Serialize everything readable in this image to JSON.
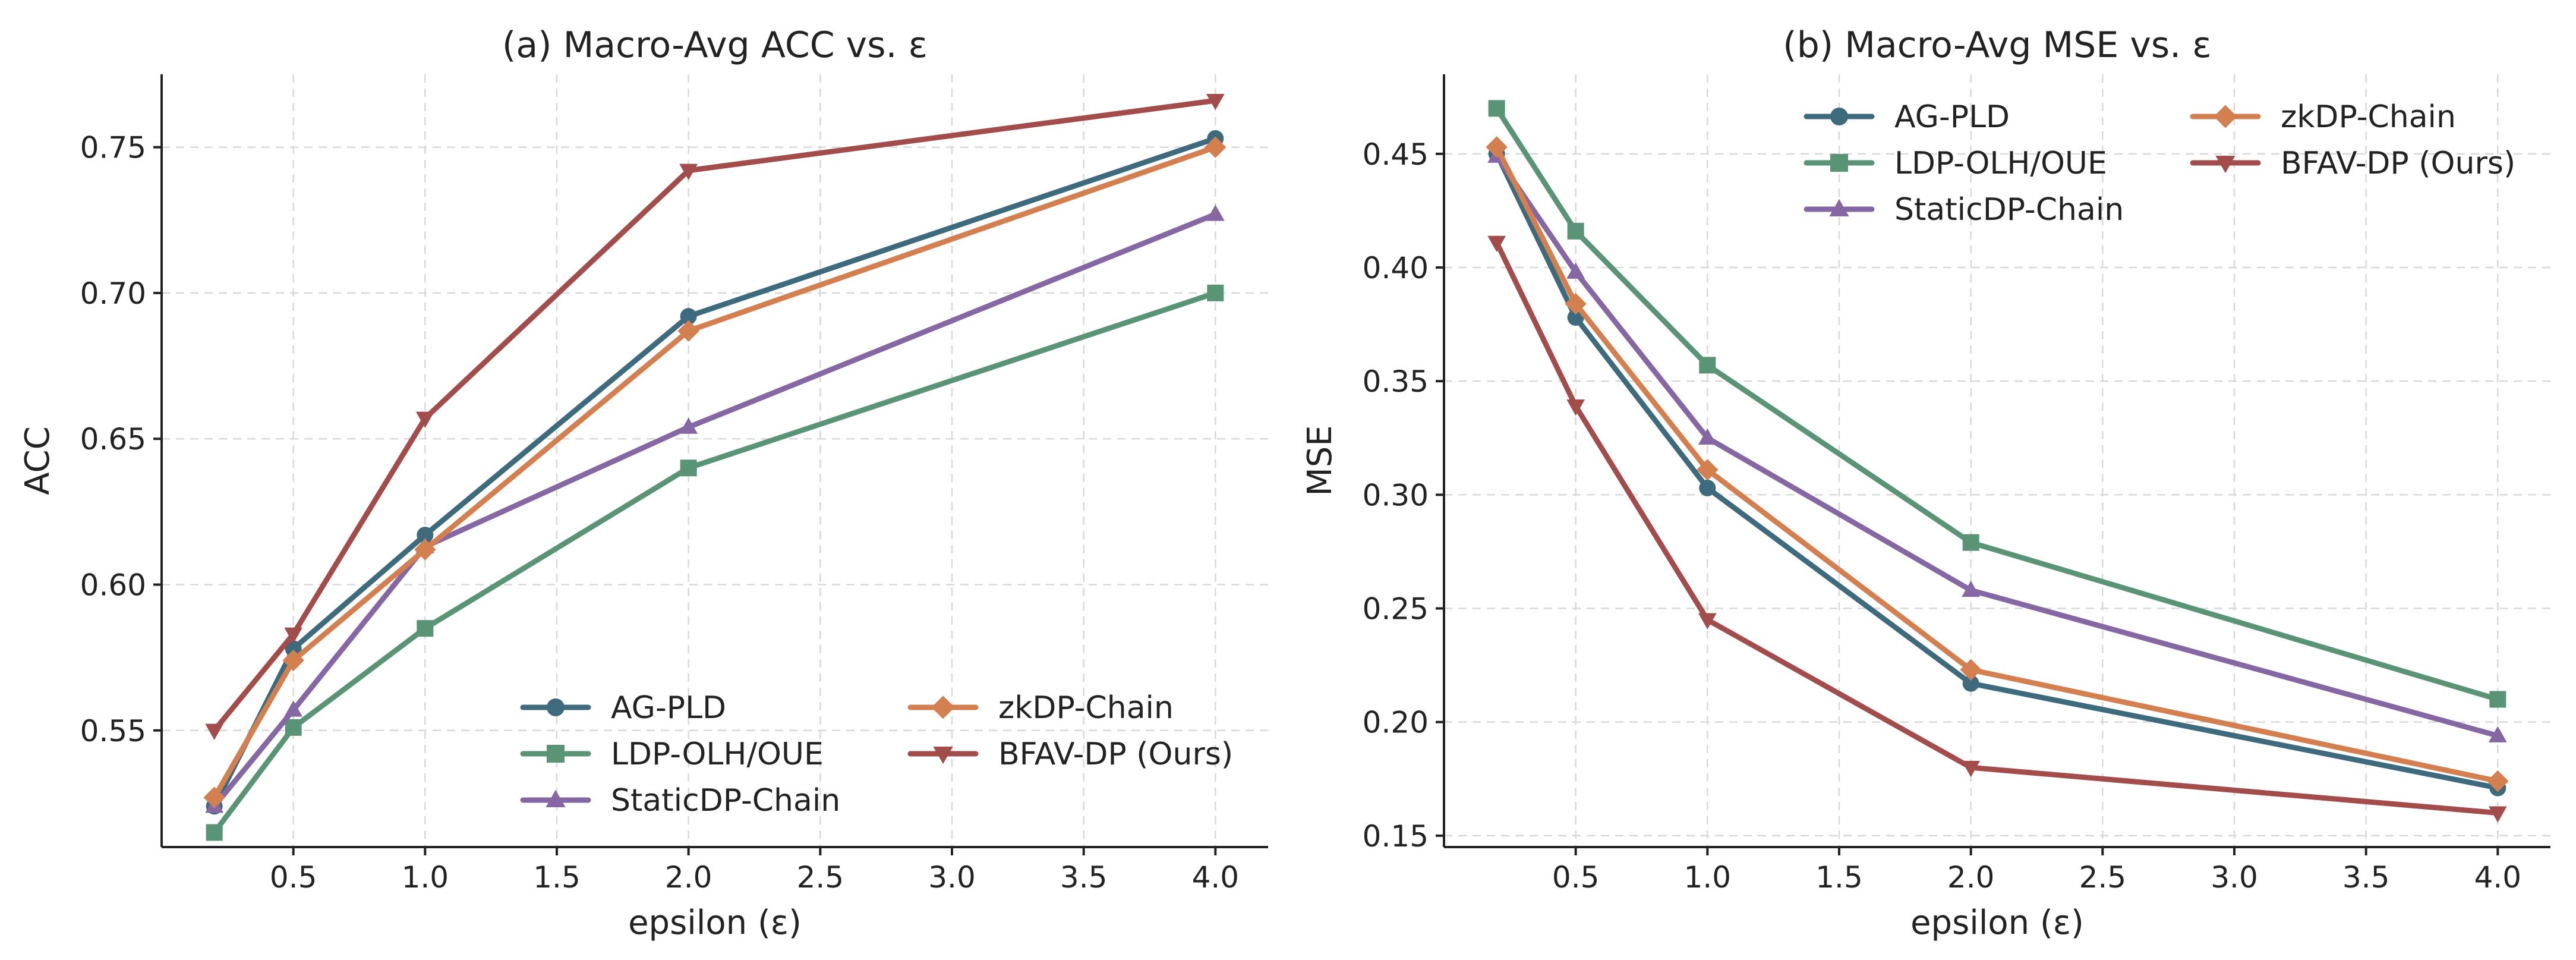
{
  "chart_data": [
    {
      "type": "line",
      "panel_id": "a",
      "title": "(a) Macro-Avg ACC vs. ε",
      "xlabel": "epsilon (ε)",
      "ylabel": "ACC",
      "x": [
        0.2,
        0.5,
        1.0,
        2.0,
        4.0
      ],
      "xlim": [
        0.0,
        4.2
      ],
      "ylim": [
        0.51,
        0.775
      ],
      "xticks": [
        "0.5",
        "1.0",
        "1.5",
        "2.0",
        "2.5",
        "3.0",
        "3.5",
        "4.0"
      ],
      "yticks": [
        "0.55",
        "0.60",
        "0.65",
        "0.70",
        "0.75"
      ],
      "grid": true,
      "legend": {
        "placement": "lower-right",
        "columns": 2
      },
      "series": [
        {
          "name": "AG-PLD",
          "color": "#3d6b7d",
          "marker": "circle",
          "values": [
            0.524,
            0.578,
            0.617,
            0.692,
            0.753
          ]
        },
        {
          "name": "LDP-OLH/OUE",
          "color": "#5a9477",
          "marker": "square",
          "values": [
            0.515,
            0.551,
            0.585,
            0.64,
            0.7
          ]
        },
        {
          "name": "StaticDP-Chain",
          "color": "#8567a3",
          "marker": "triangle-up",
          "values": [
            0.524,
            0.557,
            0.613,
            0.654,
            0.727
          ]
        },
        {
          "name": "zkDP-Chain",
          "color": "#d47f50",
          "marker": "diamond",
          "values": [
            0.527,
            0.574,
            0.612,
            0.687,
            0.75
          ]
        },
        {
          "name": "BFAV-DP (Ours)",
          "color": "#a34c4c",
          "marker": "triangle-down",
          "values": [
            0.55,
            0.583,
            0.657,
            0.742,
            0.766
          ]
        }
      ]
    },
    {
      "type": "line",
      "panel_id": "b",
      "title": "(b) Macro-Avg MSE vs. ε",
      "xlabel": "epsilon (ε)",
      "ylabel": "MSE",
      "x": [
        0.2,
        0.5,
        1.0,
        2.0,
        4.0
      ],
      "xlim": [
        0.0,
        4.2
      ],
      "ylim": [
        0.145,
        0.485
      ],
      "xticks": [
        "0.5",
        "1.0",
        "1.5",
        "2.0",
        "2.5",
        "3.0",
        "3.5",
        "4.0"
      ],
      "yticks": [
        "0.15",
        "0.20",
        "0.25",
        "0.30",
        "0.35",
        "0.40",
        "0.45"
      ],
      "grid": true,
      "legend": {
        "placement": "top-right",
        "columns": 2
      },
      "series": [
        {
          "name": "AG-PLD",
          "color": "#3d6b7d",
          "marker": "circle",
          "values": [
            0.45,
            0.378,
            0.303,
            0.217,
            0.171
          ]
        },
        {
          "name": "LDP-OLH/OUE",
          "color": "#5a9477",
          "marker": "square",
          "values": [
            0.47,
            0.416,
            0.357,
            0.279,
            0.21
          ]
        },
        {
          "name": "StaticDP-Chain",
          "color": "#8567a3",
          "marker": "triangle-up",
          "values": [
            0.449,
            0.398,
            0.325,
            0.258,
            0.194
          ]
        },
        {
          "name": "zkDP-Chain",
          "color": "#d47f50",
          "marker": "diamond",
          "values": [
            0.453,
            0.384,
            0.311,
            0.223,
            0.174
          ]
        },
        {
          "name": "BFAV-DP (Ours)",
          "color": "#a34c4c",
          "marker": "triangle-down",
          "values": [
            0.411,
            0.339,
            0.245,
            0.18,
            0.16
          ]
        }
      ]
    }
  ]
}
